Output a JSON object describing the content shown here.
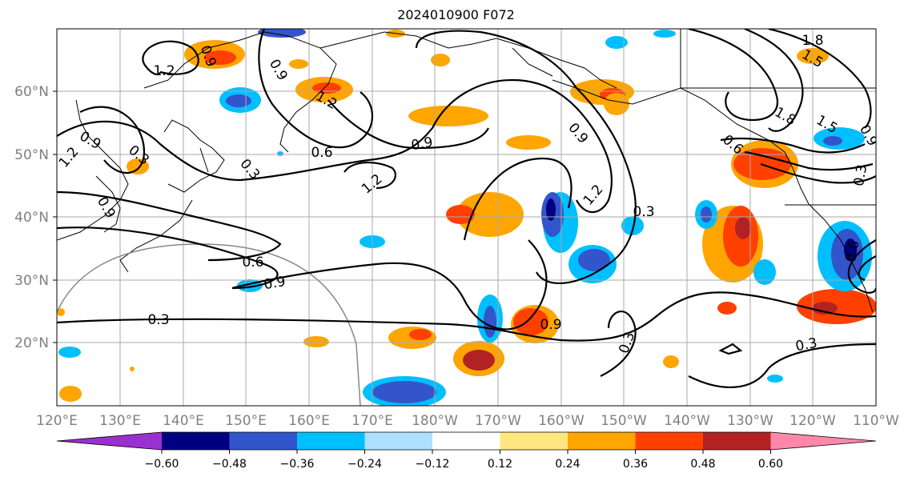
{
  "title": "2024010900 F072",
  "lat_labels": [
    "60°N",
    "50°N",
    "40°N",
    "30°N",
    "20°N"
  ],
  "lon_labels": [
    "120°E",
    "130°E",
    "140°E",
    "150°E",
    "160°E",
    "170°E",
    "180°W",
    "170°W",
    "160°W",
    "150°W",
    "140°W",
    "130°W",
    "120°W",
    "110°W"
  ],
  "contour_labels": [
    {
      "text": "1.2"
    },
    {
      "text": "0.9"
    },
    {
      "text": "0.9"
    },
    {
      "text": "1.2"
    },
    {
      "text": "0.9"
    },
    {
      "text": "0.3"
    },
    {
      "text": "1.2"
    },
    {
      "text": "0.9"
    },
    {
      "text": "0.6"
    },
    {
      "text": "0.3"
    },
    {
      "text": "0.9"
    },
    {
      "text": "1.2"
    },
    {
      "text": "0.9"
    },
    {
      "text": "1.2"
    },
    {
      "text": "0.3"
    },
    {
      "text": "0.6"
    },
    {
      "text": "0.9"
    },
    {
      "text": "0.3"
    },
    {
      "text": "0.9"
    },
    {
      "text": "0.3"
    },
    {
      "text": "0.3"
    },
    {
      "text": "1.8"
    },
    {
      "text": "1.5"
    },
    {
      "text": "1.8"
    },
    {
      "text": "1.5"
    },
    {
      "text": "0.6"
    },
    {
      "text": "0.3"
    },
    {
      "text": "0.9"
    },
    {
      "text": "0.6"
    }
  ],
  "colorbar": {
    "colors": [
      "#9b30d0",
      "#000080",
      "#3355cc",
      "#00bfff",
      "#b0e0ff",
      "#ffffff",
      "#ffe680",
      "#ffa500",
      "#ff4000",
      "#b22222",
      "#ff88aa"
    ],
    "ticks": [
      "−0.60",
      "−0.48",
      "−0.36",
      "−0.24",
      "−0.12",
      "0.12",
      "0.24",
      "0.36",
      "0.48",
      "0.60"
    ]
  }
}
